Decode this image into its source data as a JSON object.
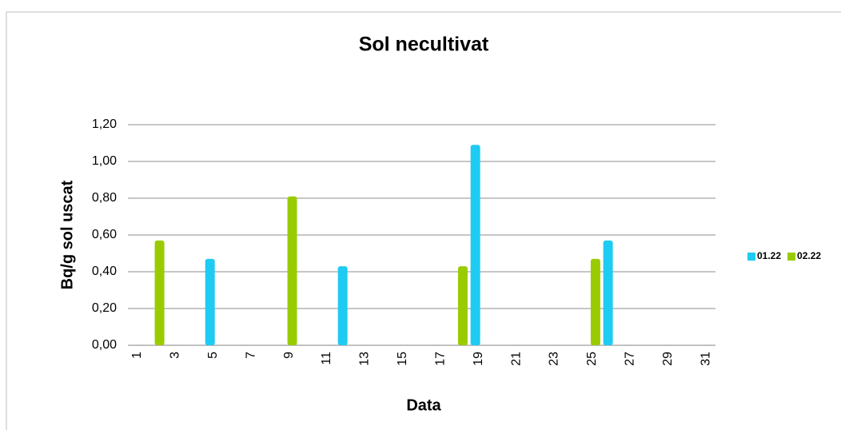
{
  "chart_data": {
    "type": "bar",
    "title": "Sol necultivat",
    "x_label": "Data",
    "y_label": "Bq/g sol uscat",
    "categories": [
      "1",
      null,
      "3",
      null,
      "5",
      null,
      "7",
      null,
      "9",
      null,
      "11",
      null,
      "13",
      null,
      "15",
      null,
      "17",
      null,
      "19",
      null,
      "21",
      null,
      "23",
      null,
      "25",
      null,
      "27",
      null,
      "29",
      null,
      "31"
    ],
    "series": [
      {
        "name": "01.22",
        "color": "#1ecbf2",
        "values": [
          null,
          null,
          null,
          null,
          0.47,
          null,
          null,
          null,
          null,
          null,
          null,
          0.43,
          null,
          null,
          null,
          null,
          null,
          null,
          1.09,
          null,
          null,
          null,
          null,
          null,
          null,
          0.57,
          null,
          null,
          null,
          null,
          null
        ]
      },
      {
        "name": "02.22",
        "color": "#99cc00",
        "values": [
          null,
          0.57,
          null,
          null,
          null,
          null,
          null,
          null,
          0.81,
          null,
          null,
          null,
          null,
          null,
          null,
          null,
          null,
          0.43,
          null,
          null,
          null,
          null,
          null,
          null,
          0.47,
          null,
          null,
          null,
          null,
          null,
          null
        ]
      }
    ],
    "ylim": [
      0,
      1.2
    ],
    "yticks": [
      {
        "value": 0,
        "label": "0,00"
      },
      {
        "value": 0.2,
        "label": "0,20"
      },
      {
        "value": 0.4,
        "label": "0,40"
      },
      {
        "value": 0.6,
        "label": "0,60"
      },
      {
        "value": 0.8,
        "label": "0,80"
      },
      {
        "value": 1,
        "label": "1,00"
      },
      {
        "value": 1.2,
        "label": "1,20"
      }
    ],
    "grid": true,
    "legend": "right"
  }
}
